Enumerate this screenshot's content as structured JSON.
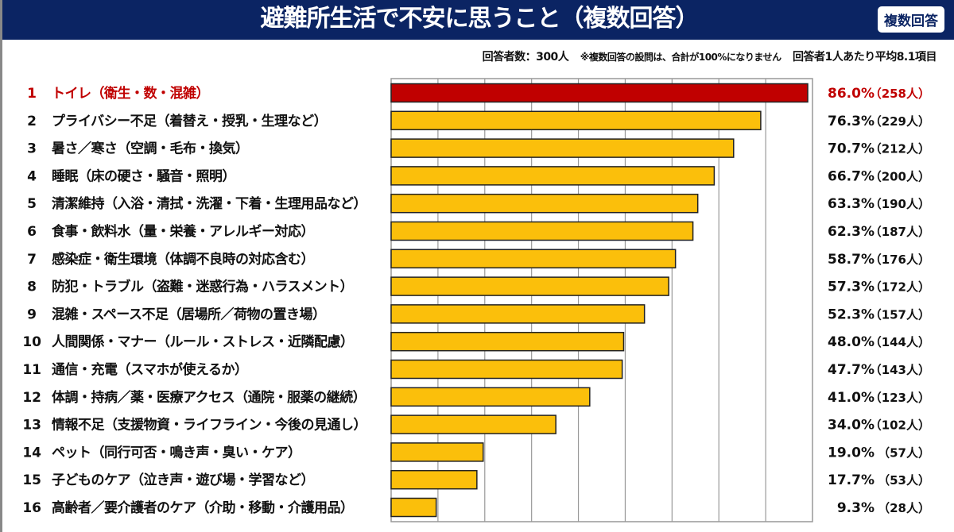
{
  "header": {
    "title": "避難所生活で不安に思うこと（複数回答）",
    "badge": "複数回答"
  },
  "note": {
    "respondents": "回答者数：300人",
    "disclaimer": "※複数回答の設問は、合計が100%になりません",
    "average": "回答者1人あたり平均8.1項目"
  },
  "colors": {
    "highlight": "#c00000",
    "bar": "#fbbf0b",
    "header": "#0b2463"
  },
  "chart_data": {
    "type": "bar",
    "orientation": "horizontal",
    "grid": true,
    "xlim": [
      0,
      87
    ],
    "ranks": [
      "1",
      "2",
      "3",
      "4",
      "5",
      "6",
      "7",
      "8",
      "9",
      "10",
      "11",
      "12",
      "13",
      "14",
      "15",
      "16"
    ],
    "categories": [
      "トイレ（衛生・数・混雑）",
      "プライバシー不足（着替え・授乳・生理など）",
      "暑さ／寒さ（空調・毛布・換気）",
      "睡眠（床の硬さ・騒音・照明）",
      "清潔維持（入浴・清拭・洗濯・下着・生理用品など）",
      "食事・飲料水（量・栄養・アレルギー対応）",
      "感染症・衛生環境（体調不良時の対応含む）",
      "防犯・トラブル（盗難・迷惑行為・ハラスメント）",
      "混雑・スペース不足（居場所／荷物の置き場）",
      "人間関係・マナー（ルール・ストレス・近隣配慮）",
      "通信・充電（スマホが使えるか）",
      "体調・持病／薬・医療アクセス（通院・服薬の継続）",
      "情報不足（支援物資・ライフライン・今後の見通し）",
      "ペット（同行可否・鳴き声・臭い・ケア）",
      "子どものケア（泣き声・遊び場・学習など）",
      "高齢者／要介護者のケア（介助・移動・介護用品）"
    ],
    "values": [
      86.0,
      76.3,
      70.7,
      66.7,
      63.3,
      62.3,
      58.7,
      57.3,
      52.3,
      48.0,
      47.7,
      41.0,
      34.0,
      19.0,
      17.7,
      9.3
    ],
    "value_labels": [
      "86.0%",
      "76.3%",
      "70.7%",
      "66.7%",
      "63.3%",
      "62.3%",
      "58.7%",
      "57.3%",
      "52.3%",
      "48.0%",
      "47.7%",
      "41.0%",
      "34.0%",
      "19.0%",
      "17.7%",
      "9.3%"
    ],
    "counts": [
      "（258人）",
      "（229人）",
      "（212人）",
      "（200人）",
      "（190人）",
      "（187人）",
      "（176人）",
      "（172人）",
      "（157人）",
      "（144人）",
      "（143人）",
      "（123人）",
      "（102人）",
      "（57人）",
      "（53人）",
      "（28人）"
    ]
  }
}
